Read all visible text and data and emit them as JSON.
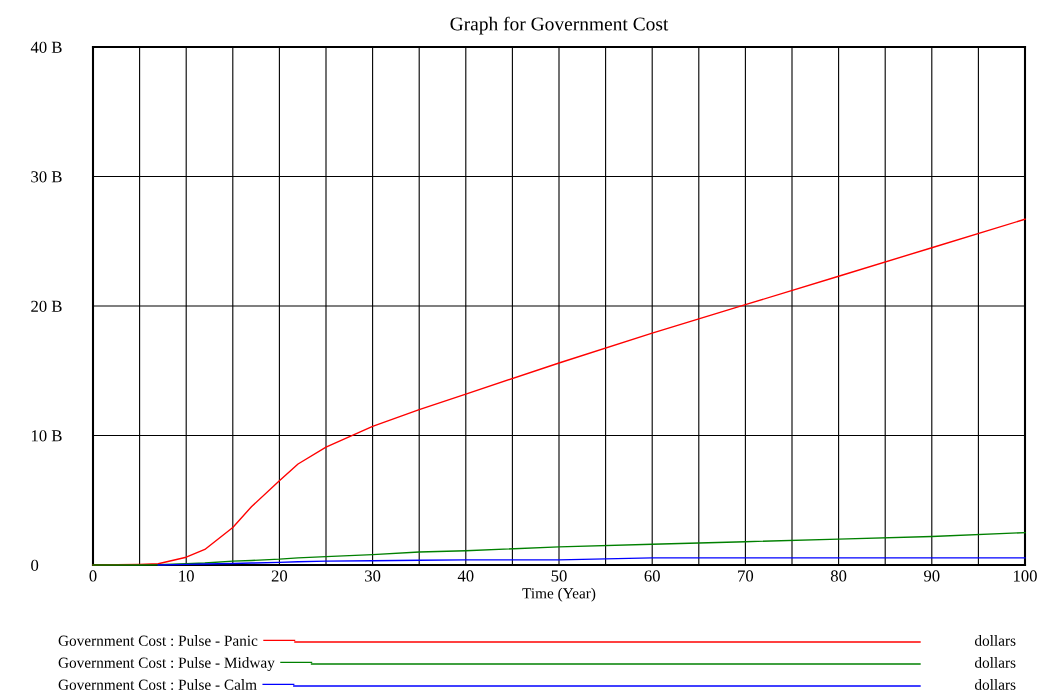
{
  "chart_data": {
    "type": "line",
    "title": "Graph for Government Cost",
    "xlabel": "Time (Year)",
    "x": [
      0,
      5,
      7,
      10,
      12,
      15,
      17,
      20,
      22,
      25,
      30,
      35,
      40,
      50,
      60,
      70,
      80,
      90,
      100
    ],
    "series": [
      {
        "name": "Government Cost : Pulse - Panic",
        "color": "#ff0000",
        "values": [
          0,
          0.05,
          0.1,
          0.6,
          1.2,
          2.9,
          4.5,
          6.5,
          7.8,
          9.1,
          10.7,
          12.0,
          13.2,
          15.6,
          17.9,
          20.1,
          22.3,
          24.5,
          26.7
        ]
      },
      {
        "name": "Government Cost : Pulse - Midway",
        "color": "#008000",
        "values": [
          0,
          0,
          0.02,
          0.1,
          0.15,
          0.3,
          0.35,
          0.45,
          0.55,
          0.65,
          0.8,
          1.0,
          1.1,
          1.4,
          1.6,
          1.8,
          2.0,
          2.2,
          2.5
        ]
      },
      {
        "name": "Government Cost : Pulse - Calm",
        "color": "#0000ff",
        "values": [
          null,
          null,
          0,
          0.05,
          0.08,
          0.12,
          0.15,
          0.2,
          0.25,
          0.3,
          0.33,
          0.37,
          0.4,
          0.4,
          0.55,
          0.55,
          0.55,
          0.55,
          0.55
        ]
      }
    ],
    "xlim": [
      0,
      100
    ],
    "xticks": [
      0,
      {
        "value": 5,
        "label": null
      },
      10,
      {
        "value": 15,
        "label": null
      },
      20,
      {
        "value": 25,
        "label": null
      },
      30,
      {
        "value": 35,
        "label": null
      },
      40,
      {
        "value": 45,
        "label": null
      },
      50,
      {
        "value": 55,
        "label": null
      },
      60,
      {
        "value": 65,
        "label": null
      },
      70,
      {
        "value": 75,
        "label": null
      },
      80,
      {
        "value": 85,
        "label": null
      },
      90,
      {
        "value": 95,
        "label": null
      },
      100
    ],
    "ylim": [
      0,
      40
    ],
    "yticks": [
      0,
      {
        "value": 10,
        "label": "10 B"
      },
      {
        "value": 20,
        "label": "20 B"
      },
      {
        "value": 30,
        "label": "30 B"
      },
      {
        "value": 40,
        "label": "40 B"
      }
    ],
    "grid": true,
    "legend": "bottom",
    "marker": "none",
    "line_style": "solid",
    "annotations": [
      "dollars",
      "dollars",
      "dollars"
    ]
  }
}
